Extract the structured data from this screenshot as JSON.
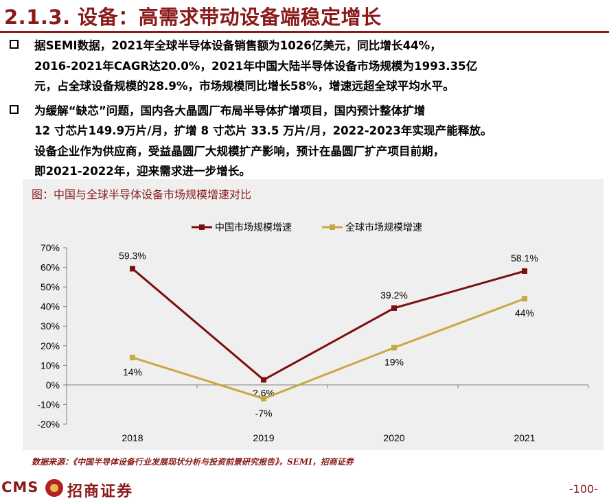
{
  "header": {
    "title": "2.1.3. 设备：高需求带动设备端稳定增长"
  },
  "bullets": [
    {
      "lines": [
        "据SEMI数据，2021年全球半导体设备销售额为1026亿美元，同比增长44%，",
        "2016-2021年CAGR达20.0%，2021年中国大陆半导体设备市场规模为1993.35亿",
        "元，占全球设备规模的28.9%，市场规模同比增长58%，增速远超全球平均水平。"
      ]
    },
    {
      "lines": [
        "为缓解“缺芯”问题，国内各大晶圆厂布局半导体扩增项目，国内预计整体扩增",
        "12 寸芯片149.9万片/月，扩增 8 寸芯片 33.5 万片/月，2022-2023年实现产能释放。",
        "设备企业作为供应商，受益晶圆厂大规模扩产影响，预计在晶圆厂扩产项目前期，",
        "即2021-2022年，迎来需求进一步增长。"
      ]
    }
  ],
  "chart": {
    "caption": "图：中国与全球半导体设备市场规模增速对比"
  },
  "chart_data": {
    "type": "line",
    "title": "图：中国与全球半导体设备市场规模增速对比",
    "categories": [
      "2018",
      "2019",
      "2020",
      "2021"
    ],
    "series": [
      {
        "name": "中国市场规模增速",
        "values": [
          59.3,
          2.6,
          39.2,
          58.1
        ],
        "labels": [
          "59.3%",
          "2.6%",
          "39.2%",
          "58.1%"
        ],
        "color": "#7b0f0f"
      },
      {
        "name": "全球市场规模增速",
        "values": [
          14,
          -7,
          19,
          44
        ],
        "labels": [
          "14%",
          "-7%",
          "19%",
          "44%"
        ],
        "color": "#c9a843"
      }
    ],
    "yticks": [
      "70%",
      "60%",
      "50%",
      "40%",
      "30%",
      "20%",
      "10%",
      "0%",
      "-10%",
      "-20%"
    ],
    "ylim": [
      -20,
      70
    ],
    "xlabel": "",
    "ylabel": "",
    "legend": "top",
    "grid": false
  },
  "footer": {
    "source": "数据来源：《中国半导体设备行业发展现状分析与投资前景研究报告》，SEMI，招商证券",
    "logo_text": "CMS",
    "logo_cn": "招商证券",
    "page_number": "-100-"
  }
}
